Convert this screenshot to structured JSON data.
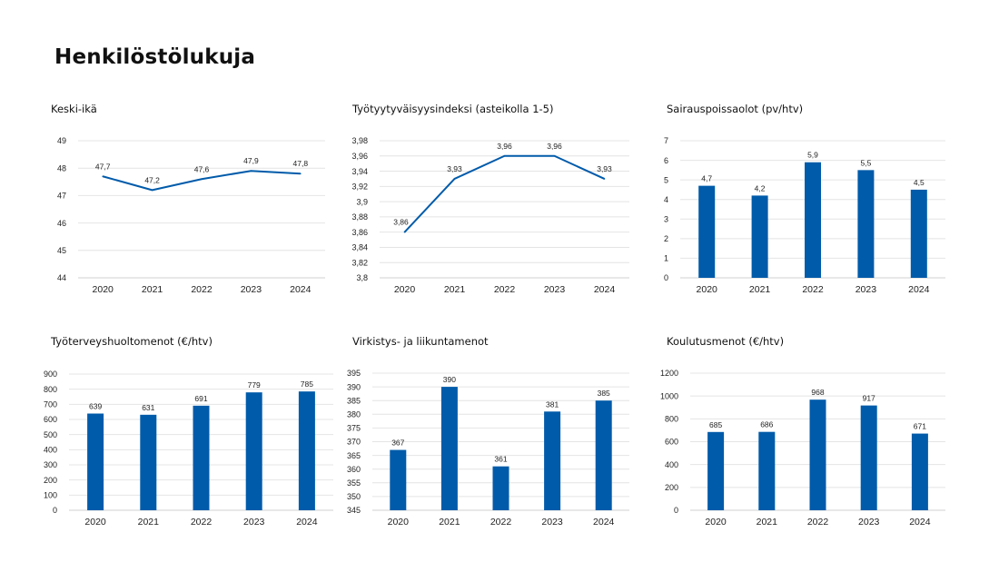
{
  "page": {
    "title": "Henkilöstölukuja"
  },
  "chart_data": [
    {
      "type": "line",
      "title": "Keski-ikä",
      "categories": [
        "2020",
        "2021",
        "2022",
        "2023",
        "2024"
      ],
      "values": [
        47.7,
        47.2,
        47.6,
        47.9,
        47.8
      ],
      "value_labels": [
        "47,7",
        "47,2",
        "47,6",
        "47,9",
        "47,8"
      ],
      "ylim": [
        44,
        49
      ],
      "yticks": [
        "44",
        "45",
        "46",
        "47",
        "48",
        "49"
      ],
      "color": "#005BAA",
      "grid": true
    },
    {
      "type": "line",
      "title": "Työtyytyväisyysindeksi (asteikolla 1-5)",
      "categories": [
        "2020",
        "2021",
        "2022",
        "2023",
        "2024"
      ],
      "values": [
        3.86,
        3.93,
        3.96,
        3.96,
        3.93
      ],
      "value_labels": [
        "3,86",
        "3,93",
        "3,96",
        "3,96",
        "3,93"
      ],
      "ylim": [
        3.8,
        3.98
      ],
      "yticks": [
        "3,8",
        "3,82",
        "3,84",
        "3,86",
        "3,88",
        "3,9",
        "3,92",
        "3,94",
        "3,96",
        "3,98"
      ],
      "color": "#005BAA",
      "grid": true
    },
    {
      "type": "bar",
      "title": "Sairauspoissaolot  (pv/htv)",
      "categories": [
        "2020",
        "2021",
        "2022",
        "2023",
        "2024"
      ],
      "values": [
        4.7,
        4.2,
        5.9,
        5.5,
        4.5
      ],
      "value_labels": [
        "4,7",
        "4,2",
        "5,9",
        "5,5",
        "4,5"
      ],
      "ylim": [
        0,
        7
      ],
      "yticks": [
        "0",
        "1",
        "2",
        "3",
        "4",
        "5",
        "6",
        "7"
      ],
      "color": "#005BAA",
      "grid": true
    },
    {
      "type": "bar",
      "title": "Työterveyshuoltomenot (€/htv)",
      "categories": [
        "2020",
        "2021",
        "2022",
        "2023",
        "2024"
      ],
      "values": [
        639,
        631,
        691,
        779,
        785
      ],
      "value_labels": [
        "639",
        "631",
        "691",
        "779",
        "785"
      ],
      "ylim": [
        0,
        900
      ],
      "yticks": [
        "0",
        "100",
        "200",
        "300",
        "400",
        "500",
        "600",
        "700",
        "800",
        "900"
      ],
      "color": "#005BAA",
      "grid": true
    },
    {
      "type": "bar",
      "title": "Virkistys- ja liikuntamenot",
      "categories": [
        "2020",
        "2021",
        "2022",
        "2023",
        "2024"
      ],
      "values": [
        367,
        390,
        361,
        381,
        385
      ],
      "value_labels": [
        "367",
        "390",
        "361",
        "381",
        "385"
      ],
      "ylim": [
        345,
        395
      ],
      "yticks": [
        "345",
        "350",
        "355",
        "360",
        "365",
        "370",
        "375",
        "380",
        "385",
        "390",
        "395"
      ],
      "color": "#005BAA",
      "grid": true
    },
    {
      "type": "bar",
      "title": "Koulutusmenot (€/htv)",
      "categories": [
        "2020",
        "2021",
        "2022",
        "2023",
        "2024"
      ],
      "values": [
        685,
        686,
        968,
        917,
        671
      ],
      "value_labels": [
        "685",
        "686",
        "968",
        "917",
        "671"
      ],
      "ylim": [
        0,
        1200
      ],
      "yticks": [
        "0",
        "200",
        "400",
        "600",
        "800",
        "1000",
        "1200"
      ],
      "color": "#005BAA",
      "grid": true
    }
  ]
}
